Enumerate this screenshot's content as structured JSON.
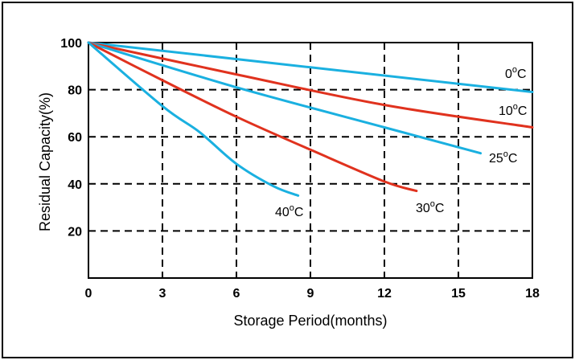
{
  "chart_data": {
    "type": "line",
    "title": "",
    "xlabel": "Storage Period(months)",
    "ylabel": "Residual Capacity(%)",
    "xlim": [
      0,
      18
    ],
    "ylim": [
      0,
      100
    ],
    "x_ticks": [
      "0",
      "3",
      "6",
      "9",
      "12",
      "15",
      "18"
    ],
    "y_ticks": [
      "100",
      "80",
      "60",
      "40",
      "20"
    ],
    "grid": true,
    "series": [
      {
        "name": "0",
        "color": "#1ab0e0",
        "points": [
          [
            0,
            100
          ],
          [
            18,
            79
          ]
        ]
      },
      {
        "name": "10",
        "color": "#e0321e",
        "points": [
          [
            0,
            100
          ],
          [
            6,
            86.5
          ],
          [
            12,
            73.5
          ],
          [
            18,
            64
          ]
        ]
      },
      {
        "name": "25",
        "color": "#1ab0e0",
        "points": [
          [
            0,
            100
          ],
          [
            6,
            81
          ],
          [
            12,
            64
          ],
          [
            15.9,
            53
          ]
        ]
      },
      {
        "name": "30",
        "color": "#e0321e",
        "points": [
          [
            0,
            100
          ],
          [
            3,
            84
          ],
          [
            6,
            68.5
          ],
          [
            9,
            54.5
          ],
          [
            12,
            41
          ],
          [
            13.3,
            37
          ]
        ]
      },
      {
        "name": "40",
        "color": "#1ab0e0",
        "points": [
          [
            0,
            100
          ],
          [
            3,
            73
          ],
          [
            4.5,
            62
          ],
          [
            6,
            48.5
          ],
          [
            7.5,
            39
          ],
          [
            8.5,
            35
          ]
        ]
      }
    ],
    "label_unit": "°C"
  }
}
